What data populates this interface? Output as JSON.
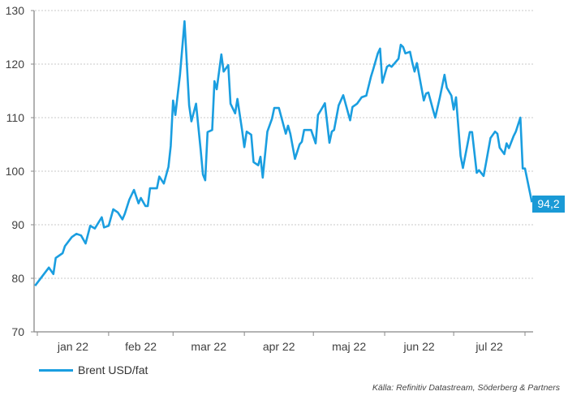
{
  "chart_data": {
    "type": "line",
    "title": "",
    "xlabel": "",
    "ylabel": "",
    "ylim": [
      70,
      130
    ],
    "yticks": [
      "70",
      "80",
      "90",
      "100",
      "110",
      "120",
      "130"
    ],
    "xticks": [
      "jan 22",
      "feb 22",
      "mar 22",
      "apr 22",
      "maj 22",
      "jun 22",
      "jul 22"
    ],
    "x_unit": "day of 2022",
    "xlim": [
      0,
      212
    ],
    "grid": true,
    "legend": "bottom-left",
    "last_value_label": "94,2",
    "series": [
      {
        "name": "Brent USD/fat",
        "color": "#1a9ee0",
        "points": [
          [
            -1,
            78.6
          ],
          [
            5,
            82
          ],
          [
            7,
            80.8
          ],
          [
            8,
            83.8
          ],
          [
            11,
            84.7
          ],
          [
            12,
            86
          ],
          [
            15,
            87.7
          ],
          [
            17,
            88.3
          ],
          [
            19,
            88
          ],
          [
            21,
            86.5
          ],
          [
            23,
            89.8
          ],
          [
            25,
            89.3
          ],
          [
            28,
            91.4
          ],
          [
            29,
            89.5
          ],
          [
            31,
            89.8
          ],
          [
            33,
            92.9
          ],
          [
            35,
            92.3
          ],
          [
            37,
            91
          ],
          [
            38,
            92
          ],
          [
            40,
            94.7
          ],
          [
            42,
            96.5
          ],
          [
            44,
            94
          ],
          [
            45,
            95
          ],
          [
            47,
            93.5
          ],
          [
            48,
            93.5
          ],
          [
            49,
            96.8
          ],
          [
            52,
            96.8
          ],
          [
            53,
            99
          ],
          [
            55,
            97.7
          ],
          [
            57,
            100.8
          ],
          [
            58,
            104.7
          ],
          [
            59,
            113.2
          ],
          [
            60,
            110.5
          ],
          [
            62,
            118
          ],
          [
            64,
            128
          ],
          [
            66,
            112.3
          ],
          [
            67,
            109.3
          ],
          [
            69,
            112.6
          ],
          [
            71,
            104
          ],
          [
            72,
            99.4
          ],
          [
            73,
            98.3
          ],
          [
            74,
            107.3
          ],
          [
            76,
            107.7
          ],
          [
            77,
            116.8
          ],
          [
            78,
            115.3
          ],
          [
            80,
            121.8
          ],
          [
            81,
            118.6
          ],
          [
            83,
            119.8
          ],
          [
            84,
            112.6
          ],
          [
            86,
            110.8
          ],
          [
            87,
            113.5
          ],
          [
            89,
            107.7
          ],
          [
            90,
            104.5
          ],
          [
            91,
            107.4
          ],
          [
            93,
            106.8
          ],
          [
            94,
            101.7
          ],
          [
            96,
            101.1
          ],
          [
            97,
            102.7
          ],
          [
            98,
            98.8
          ],
          [
            100,
            107.4
          ],
          [
            102,
            109.8
          ],
          [
            103,
            111.8
          ],
          [
            105,
            111.8
          ],
          [
            108,
            107
          ],
          [
            109,
            108.5
          ],
          [
            110,
            107
          ],
          [
            112,
            102.3
          ],
          [
            114,
            105
          ],
          [
            115,
            105.5
          ],
          [
            116,
            107.7
          ],
          [
            119,
            107.7
          ],
          [
            121,
            105.2
          ],
          [
            122,
            110.5
          ],
          [
            123,
            111.2
          ],
          [
            125,
            112.7
          ],
          [
            127,
            105.3
          ],
          [
            128,
            107.4
          ],
          [
            129,
            107.7
          ],
          [
            131,
            112.3
          ],
          [
            133,
            114.2
          ],
          [
            136,
            109.5
          ],
          [
            137,
            112
          ],
          [
            139,
            112.6
          ],
          [
            141,
            113.8
          ],
          [
            143,
            114.1
          ],
          [
            145,
            117.6
          ],
          [
            146,
            119
          ],
          [
            148,
            122
          ],
          [
            149,
            122.9
          ],
          [
            150,
            116.5
          ],
          [
            152,
            119.5
          ],
          [
            153,
            119.8
          ],
          [
            154,
            119.5
          ],
          [
            157,
            121
          ],
          [
            158,
            123.6
          ],
          [
            159,
            123.2
          ],
          [
            160,
            122
          ],
          [
            162,
            122.3
          ],
          [
            163,
            120.3
          ],
          [
            164,
            118.6
          ],
          [
            165,
            120.2
          ],
          [
            168,
            113.2
          ],
          [
            169,
            114.5
          ],
          [
            170,
            114.7
          ],
          [
            172,
            111.5
          ],
          [
            173,
            110
          ],
          [
            175,
            113.8
          ],
          [
            177,
            118
          ],
          [
            178,
            115.6
          ],
          [
            180,
            114.1
          ],
          [
            181,
            111.5
          ],
          [
            182,
            113.8
          ],
          [
            184,
            102.9
          ],
          [
            185,
            100.6
          ],
          [
            187,
            105
          ],
          [
            188,
            107.3
          ],
          [
            189,
            107.3
          ],
          [
            191,
            99.7
          ],
          [
            192,
            100.2
          ],
          [
            194,
            99.1
          ],
          [
            195,
            101.4
          ],
          [
            197,
            106.2
          ],
          [
            199,
            107.4
          ],
          [
            200,
            107
          ],
          [
            201,
            104.4
          ],
          [
            203,
            103.2
          ],
          [
            204,
            105.2
          ],
          [
            205,
            104.3
          ],
          [
            207,
            106.5
          ],
          [
            208,
            107.4
          ],
          [
            210,
            110
          ],
          [
            211,
            100.5
          ],
          [
            212,
            100.5
          ],
          [
            215,
            94.2
          ]
        ]
      }
    ]
  },
  "legend": {
    "label": "Brent USD/fat"
  },
  "source": "Källa: Refinitiv Datastream, Söderberg & Partners"
}
